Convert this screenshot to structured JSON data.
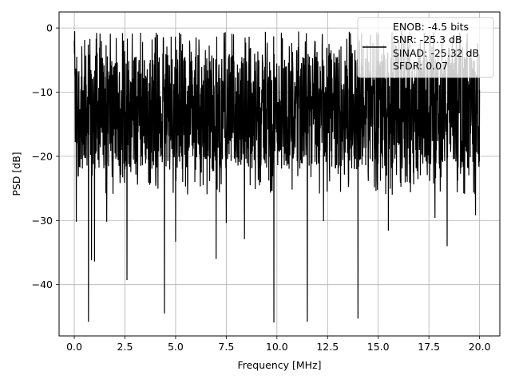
{
  "chart_data": {
    "type": "line",
    "xlabel": "Frequency [MHz]",
    "ylabel": "PSD [dB]",
    "xlim": [
      -0.75,
      21.0
    ],
    "ylim": [
      -48.0,
      2.5
    ],
    "xticks": [
      0.0,
      2.5,
      5.0,
      7.5,
      10.0,
      12.5,
      15.0,
      17.5,
      20.0
    ],
    "xtick_labels": [
      "0.0",
      "2.5",
      "5.0",
      "7.5",
      "10.0",
      "12.5",
      "15.0",
      "17.5",
      "20.0"
    ],
    "yticks": [
      0,
      -10,
      -20,
      -30,
      -40
    ],
    "ytick_labels": [
      "0",
      "−10",
      "−20",
      "−30",
      "−40"
    ],
    "grid": true,
    "legend": {
      "placement": "top-right",
      "lines": [
        "ENOB: -4.5 bits",
        "SNR: -25.3 dB",
        "SINAD: -25.32 dB",
        "SFDR: 0.07"
      ]
    },
    "series": [
      {
        "color": "#000000",
        "x_start": 0.0,
        "x_end": 20.0,
        "noise_floor_min": -22,
        "noise_floor_max": -4,
        "peak_max": -0.5,
        "dips": [
          {
            "x": 0.1,
            "y": -30.2
          },
          {
            "x": 0.7,
            "y": -45.8
          },
          {
            "x": 0.85,
            "y": -36.2
          },
          {
            "x": 1.0,
            "y": -36.4
          },
          {
            "x": 1.6,
            "y": -30.2
          },
          {
            "x": 2.6,
            "y": -39.3
          },
          {
            "x": 4.45,
            "y": -44.5
          },
          {
            "x": 5.0,
            "y": -33.3
          },
          {
            "x": 7.0,
            "y": -36.0
          },
          {
            "x": 7.5,
            "y": -30.4
          },
          {
            "x": 8.4,
            "y": -32.9
          },
          {
            "x": 9.85,
            "y": -45.9
          },
          {
            "x": 11.5,
            "y": -45.8
          },
          {
            "x": 12.3,
            "y": -30.1
          },
          {
            "x": 14.0,
            "y": -45.3
          },
          {
            "x": 15.5,
            "y": -31.6
          },
          {
            "x": 17.8,
            "y": -29.6
          },
          {
            "x": 18.4,
            "y": -34.0
          },
          {
            "x": 19.8,
            "y": -29.2
          }
        ]
      }
    ]
  }
}
